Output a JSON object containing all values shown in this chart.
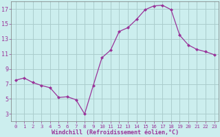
{
  "x": [
    0,
    1,
    2,
    3,
    4,
    5,
    6,
    7,
    8,
    9,
    10,
    11,
    12,
    13,
    14,
    15,
    16,
    17,
    18,
    19,
    20,
    21,
    22,
    23
  ],
  "y": [
    7.5,
    7.8,
    7.2,
    6.8,
    6.5,
    5.2,
    5.3,
    4.9,
    3.0,
    6.8,
    10.5,
    11.5,
    14.0,
    14.5,
    15.6,
    16.9,
    17.4,
    17.5,
    16.9,
    13.5,
    12.2,
    11.6,
    11.3,
    10.9
  ],
  "line_color": "#993399",
  "marker_color": "#993399",
  "bg_color": "#cceeee",
  "grid_color": "#aacccc",
  "text_color": "#993399",
  "xlabel": "Windchill (Refroidissement éolien,°C)",
  "xlim": [
    -0.5,
    23.5
  ],
  "ylim": [
    2,
    18
  ],
  "yticks": [
    3,
    5,
    7,
    9,
    11,
    13,
    15,
    17
  ],
  "xticks": [
    0,
    1,
    2,
    3,
    4,
    5,
    6,
    7,
    8,
    9,
    10,
    11,
    12,
    13,
    14,
    15,
    16,
    17,
    18,
    19,
    20,
    21,
    22,
    23
  ]
}
